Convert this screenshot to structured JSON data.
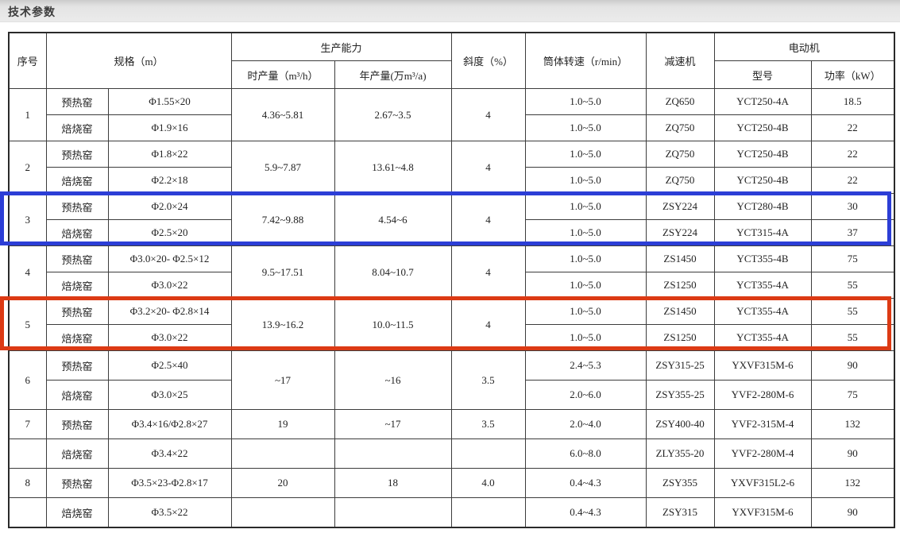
{
  "page": {
    "title": "技术参数"
  },
  "highlights": {
    "blue": "#2c3ed6",
    "red": "#dc3a14"
  },
  "table": {
    "header_rows": [
      [
        {
          "t": "序号",
          "rs": 2
        },
        {
          "t": "规格（m）",
          "rs": 2,
          "cs": 2
        },
        {
          "t": "生产能力",
          "cs": 2
        },
        {
          "t": "斜度（%）",
          "rs": 2
        },
        {
          "t": "筒体转速（r/min）",
          "rs": 2
        },
        {
          "t": "减速机",
          "rs": 2
        },
        {
          "t": "电动机",
          "cs": 2
        }
      ],
      [
        {
          "t": "时产量（m³/h）"
        },
        {
          "t": "年产量(万m³/a)"
        },
        {
          "t": "型号"
        },
        {
          "t": "功率（kW）"
        }
      ]
    ],
    "body_rows": [
      [
        {
          "t": "1",
          "rs": 2
        },
        {
          "t": "预热窑"
        },
        {
          "t": "Φ1.55×20"
        },
        {
          "t": "4.36~5.81",
          "rs": 2
        },
        {
          "t": "2.67~3.5",
          "rs": 2
        },
        {
          "t": "4",
          "rs": 2
        },
        {
          "t": "1.0~5.0"
        },
        {
          "t": "ZQ650"
        },
        {
          "t": "YCT250-4A"
        },
        {
          "t": "18.5"
        }
      ],
      [
        {
          "t": "焙烧窑"
        },
        {
          "t": "Φ1.9×16"
        },
        {
          "t": "1.0~5.0"
        },
        {
          "t": "ZQ750"
        },
        {
          "t": "YCT250-4B"
        },
        {
          "t": "22"
        }
      ],
      [
        {
          "t": "2",
          "rs": 2
        },
        {
          "t": "预热窑"
        },
        {
          "t": "Φ1.8×22"
        },
        {
          "t": "5.9~7.87",
          "rs": 2
        },
        {
          "t": "13.61~4.8",
          "rs": 2
        },
        {
          "t": "4",
          "rs": 2
        },
        {
          "t": "1.0~5.0"
        },
        {
          "t": "ZQ750"
        },
        {
          "t": "YCT250-4B"
        },
        {
          "t": "22"
        }
      ],
      [
        {
          "t": "焙烧窑"
        },
        {
          "t": "Φ2.2×18"
        },
        {
          "t": "1.0~5.0"
        },
        {
          "t": "ZQ750"
        },
        {
          "t": "YCT250-4B"
        },
        {
          "t": "22"
        }
      ],
      [
        {
          "t": "3",
          "rs": 2
        },
        {
          "t": "预热窑"
        },
        {
          "t": "Φ2.0×24"
        },
        {
          "t": "7.42~9.88",
          "rs": 2
        },
        {
          "t": "4.54~6",
          "rs": 2
        },
        {
          "t": "4",
          "rs": 2
        },
        {
          "t": "1.0~5.0"
        },
        {
          "t": "ZSY224"
        },
        {
          "t": "YCT280-4B"
        },
        {
          "t": "30"
        }
      ],
      [
        {
          "t": "焙烧窑"
        },
        {
          "t": "Φ2.5×20"
        },
        {
          "t": "1.0~5.0"
        },
        {
          "t": "ZSY224"
        },
        {
          "t": "YCT315-4A"
        },
        {
          "t": "37"
        }
      ],
      [
        {
          "t": "4",
          "rs": 2
        },
        {
          "t": "预热窑"
        },
        {
          "t": "Φ3.0×20- Φ2.5×12"
        },
        {
          "t": "9.5~17.51",
          "rs": 2
        },
        {
          "t": "8.04~10.7",
          "rs": 2
        },
        {
          "t": "4",
          "rs": 2
        },
        {
          "t": "1.0~5.0"
        },
        {
          "t": "ZS1450"
        },
        {
          "t": "YCT355-4B"
        },
        {
          "t": "75"
        }
      ],
      [
        {
          "t": "焙烧窑"
        },
        {
          "t": "Φ3.0×22"
        },
        {
          "t": "1.0~5.0"
        },
        {
          "t": "ZS1250"
        },
        {
          "t": "YCT355-4A"
        },
        {
          "t": "55"
        }
      ],
      [
        {
          "t": "5",
          "rs": 2
        },
        {
          "t": "预热窑"
        },
        {
          "t": "Φ3.2×20- Φ2.8×14"
        },
        {
          "t": "13.9~16.2",
          "rs": 2
        },
        {
          "t": "10.0~11.5",
          "rs": 2
        },
        {
          "t": "4",
          "rs": 2
        },
        {
          "t": "1.0~5.0"
        },
        {
          "t": "ZS1450"
        },
        {
          "t": "YCT355-4A"
        },
        {
          "t": "55"
        }
      ],
      [
        {
          "t": "焙烧窑"
        },
        {
          "t": "Φ3.0×22"
        },
        {
          "t": "1.0~5.0"
        },
        {
          "t": "ZS1250"
        },
        {
          "t": "YCT355-4A"
        },
        {
          "t": "55"
        }
      ],
      [
        {
          "t": "6",
          "rs": 2
        },
        {
          "t": "预热窑"
        },
        {
          "t": "Φ2.5×40"
        },
        {
          "t": "~17",
          "rs": 2
        },
        {
          "t": "~16",
          "rs": 2
        },
        {
          "t": "3.5",
          "rs": 2
        },
        {
          "t": "2.4~5.3"
        },
        {
          "t": "ZSY315-25"
        },
        {
          "t": "YXVF315M-6"
        },
        {
          "t": "90"
        }
      ],
      [
        {
          "t": "焙烧窑"
        },
        {
          "t": "Φ3.0×25"
        },
        {
          "t": "2.0~6.0"
        },
        {
          "t": "ZSY355-25"
        },
        {
          "t": "YVF2-280M-6"
        },
        {
          "t": "75"
        }
      ],
      [
        {
          "t": "7"
        },
        {
          "t": "预热窑"
        },
        {
          "t": "Φ3.4×16/Φ2.8×27"
        },
        {
          "t": "19"
        },
        {
          "t": "~17"
        },
        {
          "t": "3.5"
        },
        {
          "t": "2.0~4.0"
        },
        {
          "t": "ZSY400-40"
        },
        {
          "t": "YVF2-315M-4"
        },
        {
          "t": "132"
        }
      ],
      [
        {
          "t": ""
        },
        {
          "t": "焙烧窑"
        },
        {
          "t": "Φ3.4×22"
        },
        {
          "t": ""
        },
        {
          "t": ""
        },
        {
          "t": ""
        },
        {
          "t": "6.0~8.0"
        },
        {
          "t": "ZLY355-20"
        },
        {
          "t": "YVF2-280M-4"
        },
        {
          "t": "90"
        }
      ],
      [
        {
          "t": "8"
        },
        {
          "t": "预热窑"
        },
        {
          "t": "Φ3.5×23-Φ2.8×17"
        },
        {
          "t": "20"
        },
        {
          "t": "18"
        },
        {
          "t": "4.0"
        },
        {
          "t": "0.4~4.3"
        },
        {
          "t": "ZSY355"
        },
        {
          "t": "YXVF315L2-6"
        },
        {
          "t": "132"
        }
      ],
      [
        {
          "t": ""
        },
        {
          "t": "焙烧窑"
        },
        {
          "t": "Φ3.5×22"
        },
        {
          "t": ""
        },
        {
          "t": ""
        },
        {
          "t": ""
        },
        {
          "t": "0.4~4.3"
        },
        {
          "t": "ZSY315"
        },
        {
          "t": "YXVF315M-6"
        },
        {
          "t": "90"
        }
      ]
    ]
  }
}
